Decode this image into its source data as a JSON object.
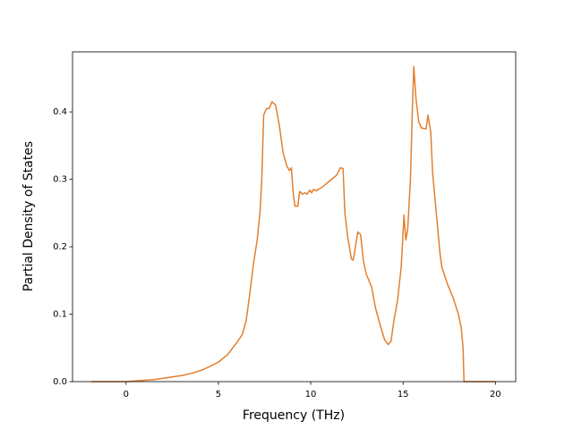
{
  "chart_data": {
    "type": "line",
    "xlabel": "Frequency (THz)",
    "ylabel": "Partial Density of States",
    "color": "#e37f2e",
    "x": [
      -1.88,
      0,
      0.5,
      1,
      1.5,
      2,
      2.5,
      3,
      3.5,
      4,
      4.5,
      5,
      5.5,
      6,
      6.3,
      6.5,
      6.7,
      6.9,
      7.1,
      7.25,
      7.35,
      7.45,
      7.6,
      7.75,
      7.9,
      8.1,
      8.3,
      8.5,
      8.7,
      8.85,
      8.95,
      9.05,
      9.15,
      9.3,
      9.4,
      9.55,
      9.7,
      9.8,
      9.95,
      10.05,
      10.15,
      10.3,
      10.6,
      11,
      11.4,
      11.6,
      11.75,
      11.85,
      12.0,
      12.2,
      12.3,
      12.45,
      12.55,
      12.7,
      12.85,
      13.0,
      13.3,
      13.5,
      13.8,
      14.0,
      14.2,
      14.35,
      14.5,
      14.7,
      14.9,
      15.0,
      15.05,
      15.15,
      15.25,
      15.4,
      15.5,
      15.58,
      15.7,
      15.85,
      16.0,
      16.25,
      16.35,
      16.5,
      16.6,
      16.8,
      17.0,
      17.1,
      17.4,
      17.7,
      18.0,
      18.15,
      18.25,
      18.3,
      20
    ],
    "values": [
      0,
      0,
      0.001,
      0.002,
      0.003,
      0.005,
      0.007,
      0.009,
      0.012,
      0.016,
      0.022,
      0.029,
      0.04,
      0.058,
      0.07,
      0.09,
      0.13,
      0.175,
      0.21,
      0.25,
      0.3,
      0.395,
      0.405,
      0.405,
      0.415,
      0.41,
      0.38,
      0.34,
      0.32,
      0.313,
      0.317,
      0.28,
      0.26,
      0.26,
      0.282,
      0.278,
      0.28,
      0.278,
      0.284,
      0.28,
      0.285,
      0.283,
      0.288,
      0.297,
      0.306,
      0.317,
      0.316,
      0.25,
      0.215,
      0.182,
      0.18,
      0.205,
      0.222,
      0.218,
      0.18,
      0.16,
      0.14,
      0.11,
      0.08,
      0.062,
      0.055,
      0.06,
      0.09,
      0.12,
      0.17,
      0.22,
      0.247,
      0.21,
      0.225,
      0.3,
      0.4,
      0.467,
      0.42,
      0.385,
      0.376,
      0.375,
      0.395,
      0.37,
      0.31,
      0.25,
      0.19,
      0.17,
      0.145,
      0.125,
      0.1,
      0.08,
      0.05,
      0,
      0
    ],
    "xlim": [
      -2.9,
      21.1
    ],
    "ylim": [
      0,
      0.489
    ],
    "xticks": [
      0,
      5,
      10,
      15,
      20
    ],
    "yticks": [
      {
        "value": 0,
        "label": "0.0"
      },
      0.1,
      0.2,
      0.3,
      0.4
    ]
  }
}
